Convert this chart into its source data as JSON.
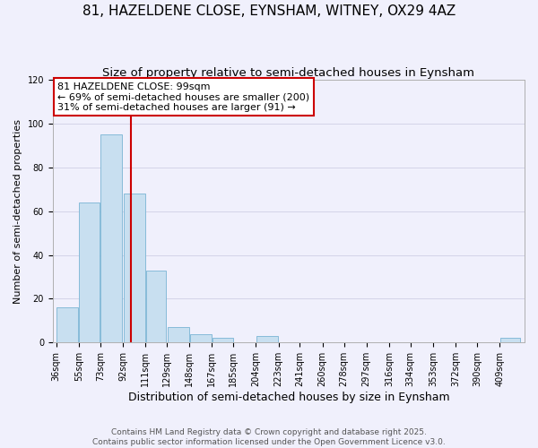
{
  "title": "81, HAZELDENE CLOSE, EYNSHAM, WITNEY, OX29 4AZ",
  "subtitle": "Size of property relative to semi-detached houses in Eynsham",
  "xlabel": "Distribution of semi-detached houses by size in Eynsham",
  "ylabel": "Number of semi-detached properties",
  "bar_values": [
    16,
    64,
    95,
    68,
    33,
    7,
    4,
    2,
    0,
    3,
    0,
    0,
    0,
    0,
    0,
    0,
    0,
    0,
    0,
    0,
    2
  ],
  "bar_left_edges": [
    36,
    55,
    73,
    92,
    111,
    129,
    148,
    167,
    185,
    204,
    223,
    241,
    260,
    278,
    297,
    316,
    334,
    353,
    372,
    390,
    409
  ],
  "bar_widths": [
    19,
    18,
    19,
    19,
    18,
    19,
    19,
    18,
    19,
    19,
    18,
    19,
    18,
    19,
    19,
    18,
    19,
    19,
    18,
    19,
    18
  ],
  "x_tick_labels": [
    "36sqm",
    "55sqm",
    "73sqm",
    "92sqm",
    "111sqm",
    "129sqm",
    "148sqm",
    "167sqm",
    "185sqm",
    "204sqm",
    "223sqm",
    "241sqm",
    "260sqm",
    "278sqm",
    "297sqm",
    "316sqm",
    "334sqm",
    "353sqm",
    "372sqm",
    "390sqm",
    "409sqm"
  ],
  "ylim": [
    0,
    120
  ],
  "yticks": [
    0,
    20,
    40,
    60,
    80,
    100,
    120
  ],
  "bar_color": "#c8dff0",
  "bar_edge_color": "#7ab4d4",
  "vline_x": 99,
  "vline_color": "#cc0000",
  "annotation_title": "81 HAZELDENE CLOSE: 99sqm",
  "annotation_line1": "← 69% of semi-detached houses are smaller (200)",
  "annotation_line2": "31% of semi-detached houses are larger (91) →",
  "annotation_box_facecolor": "#ffffff",
  "annotation_box_edgecolor": "#cc0000",
  "grid_color": "#d4d4e8",
  "background_color": "#f0f0fc",
  "footer1": "Contains HM Land Registry data © Crown copyright and database right 2025.",
  "footer2": "Contains public sector information licensed under the Open Government Licence v3.0.",
  "title_fontsize": 11,
  "subtitle_fontsize": 9.5,
  "xlabel_fontsize": 9,
  "ylabel_fontsize": 8,
  "tick_fontsize": 7,
  "annotation_fontsize": 8,
  "footer_fontsize": 6.5
}
